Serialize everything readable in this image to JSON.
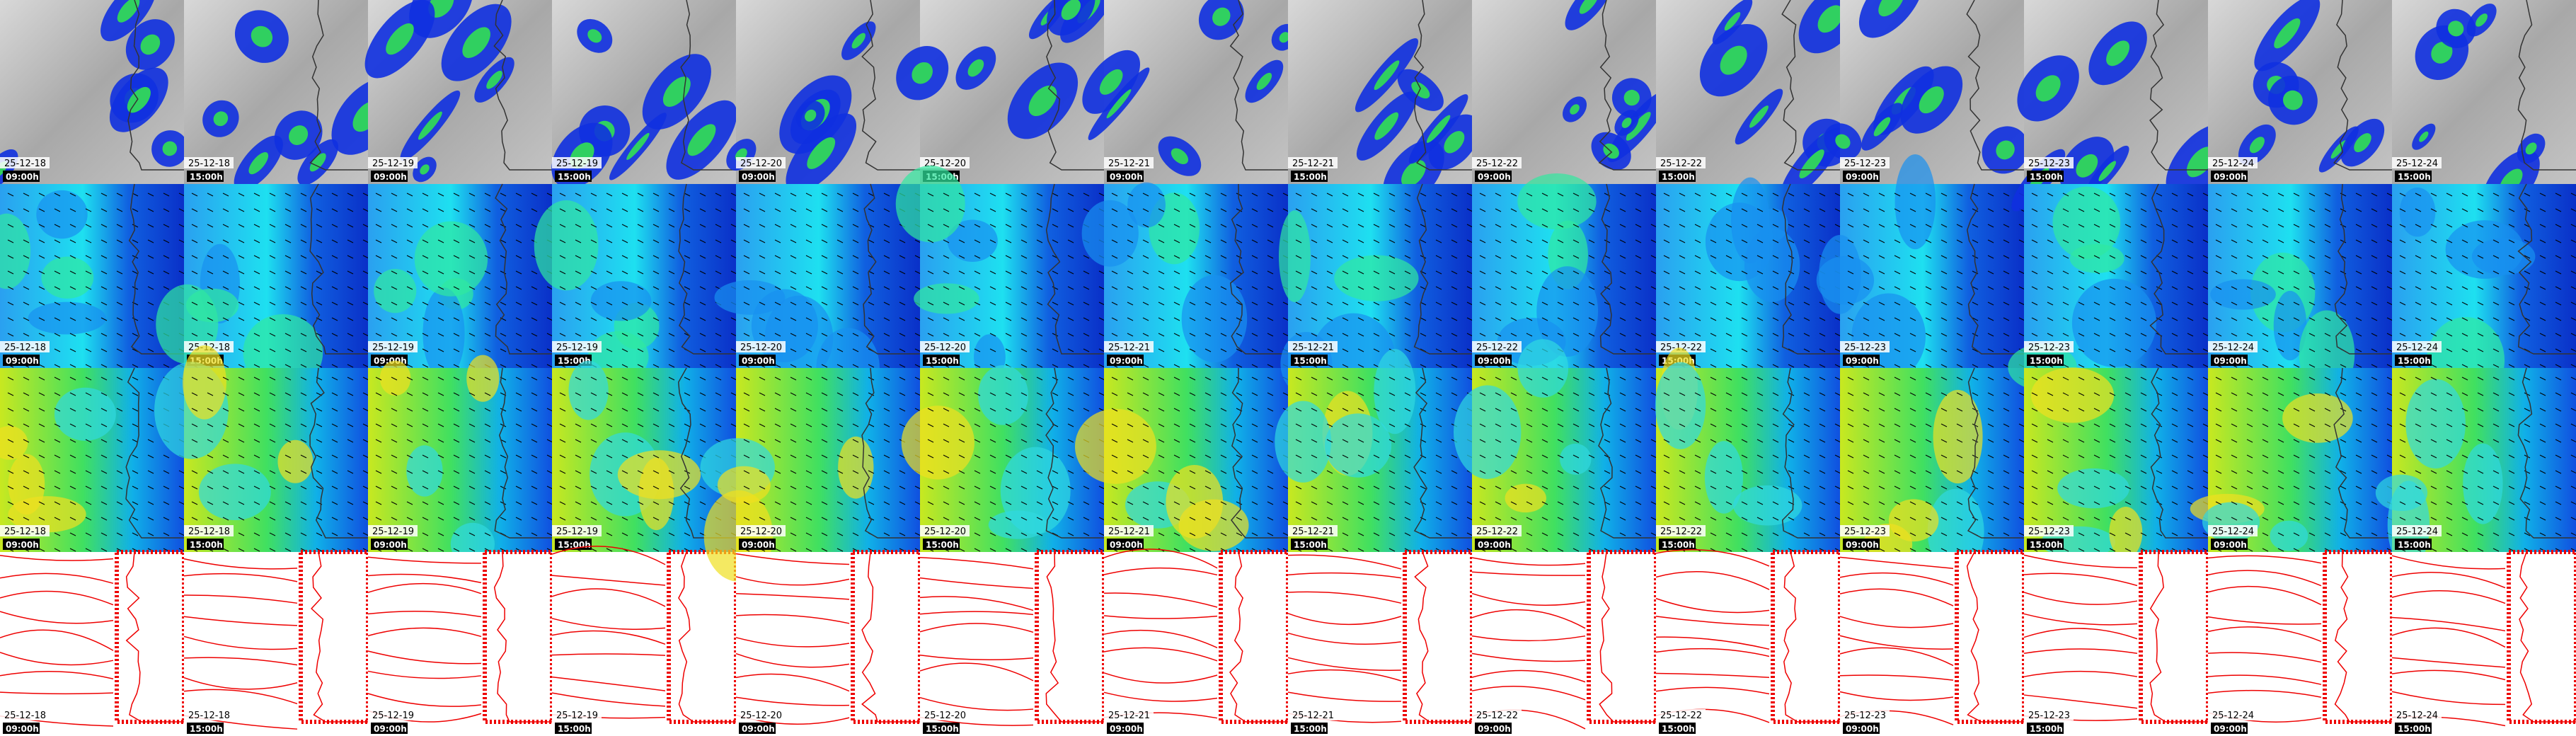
{
  "columns": [
    {
      "date": "25-12-18",
      "time": "09:00h"
    },
    {
      "date": "25-12-18",
      "time": "15:00h"
    },
    {
      "date": "25-12-19",
      "time": "09:00h"
    },
    {
      "date": "25-12-19",
      "time": "15:00h"
    },
    {
      "date": "25-12-20",
      "time": "09:00h"
    },
    {
      "date": "25-12-20",
      "time": "15:00h"
    },
    {
      "date": "25-12-21",
      "time": "09:00h"
    },
    {
      "date": "25-12-21",
      "time": "15:00h"
    },
    {
      "date": "25-12-22",
      "time": "09:00h"
    },
    {
      "date": "25-12-22",
      "time": "15:00h"
    },
    {
      "date": "25-12-23",
      "time": "09:00h"
    },
    {
      "date": "25-12-23",
      "time": "15:00h"
    },
    {
      "date": "25-12-24",
      "time": "09:00h"
    },
    {
      "date": "25-12-24",
      "time": "15:00h"
    }
  ]
}
